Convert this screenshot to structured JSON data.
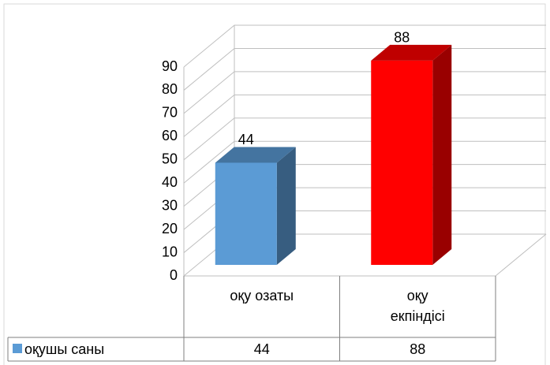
{
  "chart_data": {
    "type": "bar3d",
    "categories": [
      "оқу озаты",
      "оқу екпіндісі"
    ],
    "series": [
      {
        "name": "оқушы саны",
        "color": "#5b9bd5",
        "point_colors": [
          "#5b9bd5",
          "#ff0000"
        ],
        "values": [
          44,
          88
        ]
      }
    ],
    "ylim": [
      0,
      90
    ],
    "yticks": [
      0,
      10,
      20,
      30,
      40,
      50,
      60,
      70,
      80,
      90
    ],
    "grid": true,
    "data_table": true
  }
}
